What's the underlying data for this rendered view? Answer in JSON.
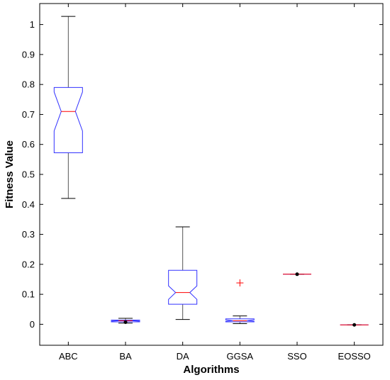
{
  "chart_data": {
    "type": "box",
    "title": "",
    "xlabel": "Algorithms",
    "ylabel": "Fitness Value",
    "ylim": [
      -0.07,
      1.07
    ],
    "yticks": [
      0,
      0.1,
      0.2,
      0.3,
      0.4,
      0.5,
      0.6,
      0.7,
      0.8,
      0.9,
      1
    ],
    "ytick_labels": [
      "0",
      "0.1",
      "0.2",
      "0.3",
      "0.4",
      "0.5",
      "0.6",
      "0.7",
      "0.8",
      "0.9",
      "1"
    ],
    "categories": [
      "ABC",
      "BA",
      "DA",
      "GGSA",
      "SSO",
      "EOSSO"
    ],
    "notched": true,
    "grid": false,
    "colors": {
      "box": "#3333ff",
      "median": "#ff0000",
      "whisker": "#000000",
      "outlier": "#ff0000",
      "marker": "#000000"
    },
    "boxes": [
      {
        "name": "ABC",
        "whisker_low": 0.42,
        "q1": 0.572,
        "median": 0.71,
        "q3": 0.79,
        "whisker_high": 1.027,
        "notch_low": 0.645,
        "notch_high": 0.775,
        "outliers": [],
        "marker": null
      },
      {
        "name": "BA",
        "whisker_low": 0.004,
        "q1": 0.008,
        "median": 0.012,
        "q3": 0.014,
        "whisker_high": 0.02,
        "notch_low": 0.01,
        "notch_high": 0.013,
        "outliers": [],
        "marker": 0.007
      },
      {
        "name": "DA",
        "whisker_low": 0.016,
        "q1": 0.067,
        "median": 0.106,
        "q3": 0.18,
        "whisker_high": 0.325,
        "notch_low": 0.083,
        "notch_high": 0.128,
        "outliers": [],
        "marker": null
      },
      {
        "name": "GGSA",
        "whisker_low": 0.002,
        "q1": 0.008,
        "median": 0.012,
        "q3": 0.018,
        "whisker_high": 0.028,
        "notch_low": 0.01,
        "notch_high": 0.015,
        "outliers": [
          0.138
        ],
        "marker": null
      },
      {
        "name": "SSO",
        "whisker_low": 0.167,
        "q1": 0.167,
        "median": 0.167,
        "q3": 0.167,
        "whisker_high": 0.167,
        "notch_low": 0.167,
        "notch_high": 0.167,
        "outliers": [],
        "marker": 0.167
      },
      {
        "name": "EOSSO",
        "whisker_low": -0.002,
        "q1": -0.002,
        "median": -0.002,
        "q3": -0.002,
        "whisker_high": -0.002,
        "notch_low": -0.002,
        "notch_high": -0.002,
        "outliers": [],
        "marker": -0.002
      }
    ]
  }
}
